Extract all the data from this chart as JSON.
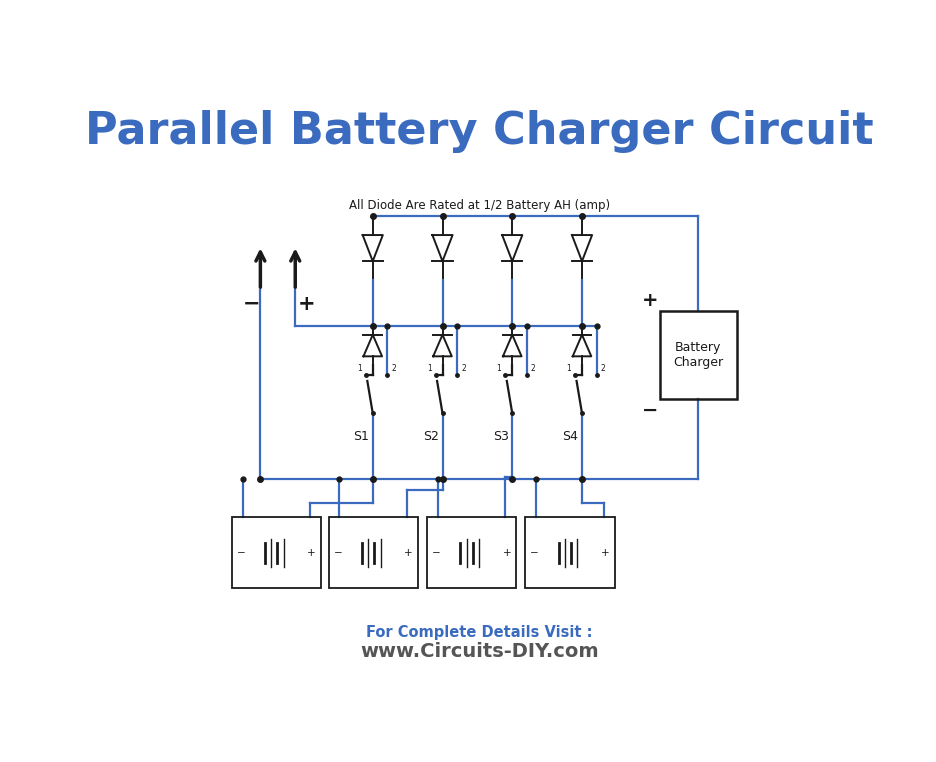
{
  "title": "Parallel Battery Charger Circuit",
  "title_color": "#3a6bbf",
  "title_fontsize": 32,
  "bg_color": "#ffffff",
  "wire_color": "#3a6bbf",
  "black_color": "#1a1a1a",
  "annotation_text": "All Diode Are Rated at 1/2 Battery AH (amp)",
  "footer_line1": "For Complete Details Visit :",
  "footer_line1_color": "#3a6bbf",
  "footer_line2": "www.Circuits-DIY.com",
  "footer_line2_color": "#555555",
  "switch_labels": [
    "S1",
    "S2",
    "S3",
    "S4"
  ],
  "batt_charger_l1": "Battery",
  "batt_charger_l2": "Charger",
  "wire_lw": 1.6,
  "comp_lw": 1.4
}
